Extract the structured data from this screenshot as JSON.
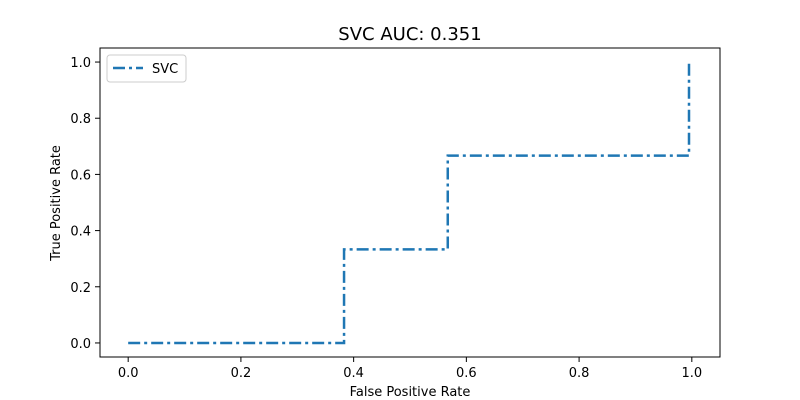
{
  "chart_data": {
    "type": "line",
    "title": "SVC AUC: 0.351",
    "xlabel": "False Positive Rate",
    "ylabel": "True Positive Rate",
    "xlim": [
      -0.05,
      1.05
    ],
    "ylim": [
      -0.05,
      1.05
    ],
    "xticks": [
      0.0,
      0.2,
      0.4,
      0.6,
      0.8,
      1.0
    ],
    "xtick_labels": [
      "0.0",
      "0.2",
      "0.4",
      "0.6",
      "0.8",
      "1.0"
    ],
    "yticks": [
      0.0,
      0.2,
      0.4,
      0.6,
      0.8,
      1.0
    ],
    "ytick_labels": [
      "0.0",
      "0.2",
      "0.4",
      "0.6",
      "0.8",
      "1.0"
    ],
    "grid": false,
    "legend": {
      "placement": "top-left"
    },
    "series": [
      {
        "name": "SVC",
        "color": "#1f77b4",
        "linestyle": "dashdot",
        "x": [
          0.0,
          0.383,
          0.383,
          0.567,
          0.567,
          0.995,
          0.995
        ],
        "y": [
          0.0,
          0.0,
          0.333,
          0.333,
          0.667,
          0.667,
          1.0
        ]
      }
    ]
  }
}
